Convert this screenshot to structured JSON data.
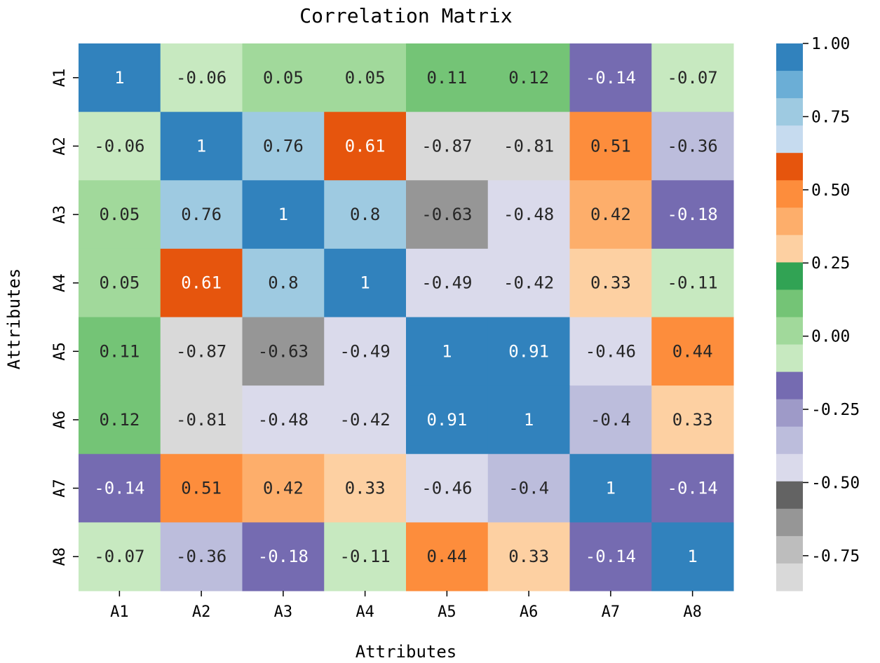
{
  "chart_data": {
    "type": "heatmap",
    "title": "Correlation Matrix",
    "xlabel": "Attributes",
    "ylabel": "Attributes",
    "x_categories": [
      "A1",
      "A2",
      "A3",
      "A4",
      "A5",
      "A6",
      "A7",
      "A8"
    ],
    "y_categories": [
      "A1",
      "A2",
      "A3",
      "A4",
      "A5",
      "A6",
      "A7",
      "A8"
    ],
    "values": [
      [
        1,
        -0.06,
        0.05,
        0.05,
        0.11,
        0.12,
        -0.14,
        -0.07
      ],
      [
        -0.06,
        1,
        0.76,
        0.61,
        -0.87,
        -0.81,
        0.51,
        -0.36
      ],
      [
        0.05,
        0.76,
        1,
        0.8,
        -0.63,
        -0.48,
        0.42,
        -0.18
      ],
      [
        0.05,
        0.61,
        0.8,
        1,
        -0.49,
        -0.42,
        0.33,
        -0.11
      ],
      [
        0.11,
        -0.87,
        -0.63,
        -0.49,
        1,
        0.91,
        -0.46,
        0.44
      ],
      [
        0.12,
        -0.81,
        -0.48,
        -0.42,
        0.91,
        1,
        -0.4,
        0.33
      ],
      [
        -0.14,
        0.51,
        0.42,
        0.33,
        -0.46,
        -0.4,
        1,
        -0.14
      ],
      [
        -0.07,
        -0.36,
        -0.18,
        -0.11,
        0.44,
        0.33,
        -0.14,
        1
      ]
    ],
    "annotations": [
      [
        "1",
        "-0.06",
        "0.05",
        "0.05",
        "0.11",
        "0.12",
        "-0.14",
        "-0.07"
      ],
      [
        "-0.06",
        "1",
        "0.76",
        "0.61",
        "-0.87",
        "-0.81",
        "0.51",
        "-0.36"
      ],
      [
        "0.05",
        "0.76",
        "1",
        "0.8",
        "-0.63",
        "-0.48",
        "0.42",
        "-0.18"
      ],
      [
        "0.05",
        "0.61",
        "0.8",
        "1",
        "-0.49",
        "-0.42",
        "0.33",
        "-0.11"
      ],
      [
        "0.11",
        "-0.87",
        "-0.63",
        "-0.49",
        "1",
        "0.91",
        "-0.46",
        "0.44"
      ],
      [
        "0.12",
        "-0.81",
        "-0.48",
        "-0.42",
        "0.91",
        "1",
        "-0.4",
        "0.33"
      ],
      [
        "-0.14",
        "0.51",
        "0.42",
        "0.33",
        "-0.46",
        "-0.4",
        "1",
        "-0.14"
      ],
      [
        "-0.07",
        "-0.36",
        "-0.18",
        "-0.11",
        "0.44",
        "0.33",
        "-0.14",
        "1"
      ]
    ],
    "colormap": "tab20c",
    "vmin": -0.87,
    "vmax": 1,
    "colorbar_colors": [
      "#3182bd",
      "#6baed6",
      "#9ecae1",
      "#c6dbef",
      "#e6550d",
      "#fd8d3c",
      "#fdae6b",
      "#fdd0a2",
      "#31a354",
      "#74c476",
      "#a1d99b",
      "#c7e9c0",
      "#756bb1",
      "#9e9ac8",
      "#bcbddc",
      "#dadaeb",
      "#636363",
      "#969696",
      "#bdbdbd",
      "#d9d9d9"
    ],
    "colorbar_ticks": [
      1.0,
      0.75,
      0.5,
      0.25,
      0.0,
      -0.25,
      -0.5,
      -0.75
    ],
    "colorbar_tick_labels": [
      "1.00",
      "0.75",
      "0.50",
      "0.25",
      "0.00",
      "-0.25",
      "-0.50",
      "-0.75"
    ],
    "dark_text_threshold_colors": [
      "#3182bd",
      "#e6550d",
      "#fd8d3c",
      "#756bb1",
      "#969696",
      "#636363",
      "#31a354"
    ]
  }
}
